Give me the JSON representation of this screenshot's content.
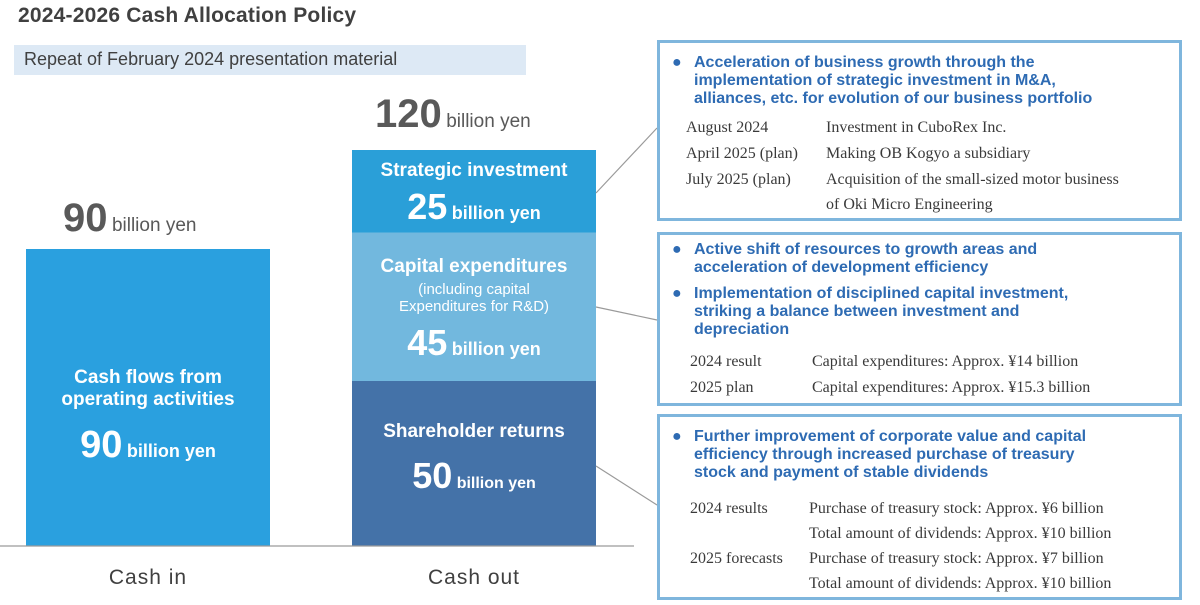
{
  "title": "2024-2026 Cash Allocation Policy",
  "subtitle": "Repeat of February 2024 presentation material",
  "unit_suffix": "billion yen",
  "colors": {
    "cash_in": "#2aa0df",
    "strategic": "#2a9fd8",
    "capex": "#72b8de",
    "shareholder": "#4472a8",
    "panel_border": "#7fb6dd",
    "bullet_text": "#2e6bb3"
  },
  "chart_data": {
    "type": "bar",
    "stacked": true,
    "categories": [
      "Cash  in",
      "Cash  out"
    ],
    "totals": [
      90,
      120
    ],
    "series": [
      {
        "name": "Cash flows from operating activities",
        "values": [
          90,
          0
        ]
      },
      {
        "name": "Shareholder returns",
        "values": [
          0,
          50
        ]
      },
      {
        "name": "Capital expenditures",
        "values": [
          0,
          45
        ]
      },
      {
        "name": "Strategic investment",
        "values": [
          0,
          25
        ]
      }
    ]
  },
  "bars": {
    "cash_in": {
      "total": "90",
      "label_line1": "Cash flows from",
      "label_line2": "operating activities",
      "value": "90"
    },
    "cash_out": {
      "total": "120",
      "strategic": {
        "label": "Strategic investment",
        "value": "25"
      },
      "capex": {
        "label": "Capital expenditures",
        "note_line1": "(including capital",
        "note_line2": "Expenditures for R&D)",
        "value": "45"
      },
      "shareholder": {
        "label": "Shareholder returns",
        "value": "50"
      }
    }
  },
  "panels": {
    "strategic": {
      "bullets": [
        {
          "line1": "Acceleration of business growth through the",
          "line2": "implementation of strategic investment in M&A,",
          "line3": "alliances, etc. for evolution of our business portfolio"
        }
      ],
      "rows": [
        {
          "date": "August 2024",
          "text": "Investment in CuboRex Inc."
        },
        {
          "date": "April 2025 (plan)",
          "text": "Making OB Kogyo a subsidiary"
        },
        {
          "date": "July 2025 (plan)",
          "text": "Acquisition of the small-sized motor business"
        },
        {
          "date": "",
          "text": "of Oki Micro Engineering"
        }
      ]
    },
    "capex": {
      "bullets": [
        {
          "line1": "Active shift of resources to growth areas and",
          "line2": "acceleration of development efficiency"
        },
        {
          "line1": "Implementation of disciplined capital investment,",
          "line2": "striking a balance between investment and",
          "line3": "depreciation"
        }
      ],
      "rows": [
        {
          "date": "2024 result",
          "text": "Capital expenditures: Approx. ¥14   billion"
        },
        {
          "date": "2025 plan",
          "text": "Capital expenditures: Approx. ¥15.3 billion"
        }
      ]
    },
    "shareholder": {
      "bullets": [
        {
          "line1": "Further improvement of corporate value and capital",
          "line2": "efficiency through increased purchase of treasury",
          "line3": "stock and payment of stable dividends"
        }
      ],
      "rows": [
        {
          "date": "2024 results",
          "text": "Purchase of treasury stock: Approx. ¥6   billion"
        },
        {
          "date": "",
          "text": "Total amount of dividends: Approx.  ¥10 billion"
        },
        {
          "date": "2025 forecasts",
          "text": "Purchase of treasury stock: Approx. ¥7   billion"
        },
        {
          "date": "",
          "text": "Total amount of dividends: Approx.  ¥10 billion"
        }
      ]
    }
  }
}
